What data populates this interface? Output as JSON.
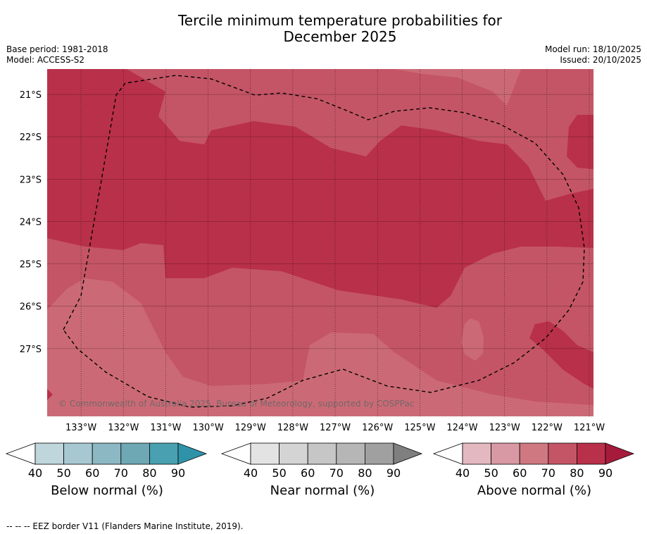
{
  "header": {
    "title_line1": "Tercile minimum temperature probabilities for",
    "title_line2": "December 2025",
    "base_period": "Base period: 1981-2018",
    "model": "Model: ACCESS-S2",
    "model_run": "Model run: 18/10/2025",
    "issued": "Issued: 20/10/2025"
  },
  "copyright": "© Commonwealth of Australia 2025, Bureau of Meteorology, supported by COSPPac",
  "footnote": "--  --  -- EEZ border V11 (Flanders Marine Institute, 2019).",
  "colors": {
    "above": [
      "#ffffff",
      "#e4b8c0",
      "#d899a4",
      "#cf7882",
      "#c45566",
      "#b9304a",
      "#a61b3c"
    ],
    "near": [
      "#ffffff",
      "#e3e3e3",
      "#d4d4d4",
      "#c6c6c6",
      "#b6b6b6",
      "#a0a0a0",
      "#7f7f7f"
    ],
    "below": [
      "#ffffff",
      "#bfd6dc",
      "#a7c8d0",
      "#8bb8c3",
      "#6ea8b5",
      "#48a0b0",
      "#2e93a8"
    ]
  },
  "chart_data": {
    "type": "heatmap",
    "title": "Tercile minimum temperature probabilities for December 2025",
    "x_ticks": [
      "133°W",
      "132°W",
      "131°W",
      "130°W",
      "129°W",
      "128°W",
      "127°W",
      "126°W",
      "125°W",
      "124°W",
      "123°W",
      "122°W",
      "121°W"
    ],
    "y_ticks": [
      "21°S",
      "22°S",
      "23°S",
      "24°S",
      "25°S",
      "26°S",
      "27°S"
    ],
    "xlim": [
      133.8,
      120.9
    ],
    "ylim": [
      -20.4,
      -28.6
    ],
    "field": "Above normal (%)",
    "regions": [
      {
        "category": "above",
        "probability_band": "70-80",
        "description_value": 75
      },
      {
        "category": "above",
        "probability_band": "80-90",
        "description_value": 85
      }
    ],
    "colorbars": [
      {
        "name": "Below normal (%)",
        "ticks": [
          "40",
          "50",
          "60",
          "70",
          "80",
          "90"
        ]
      },
      {
        "name": "Near normal (%)",
        "ticks": [
          "40",
          "50",
          "60",
          "70",
          "80",
          "90"
        ]
      },
      {
        "name": "Above normal (%)",
        "ticks": [
          "40",
          "50",
          "60",
          "70",
          "80",
          "90"
        ]
      }
    ]
  }
}
